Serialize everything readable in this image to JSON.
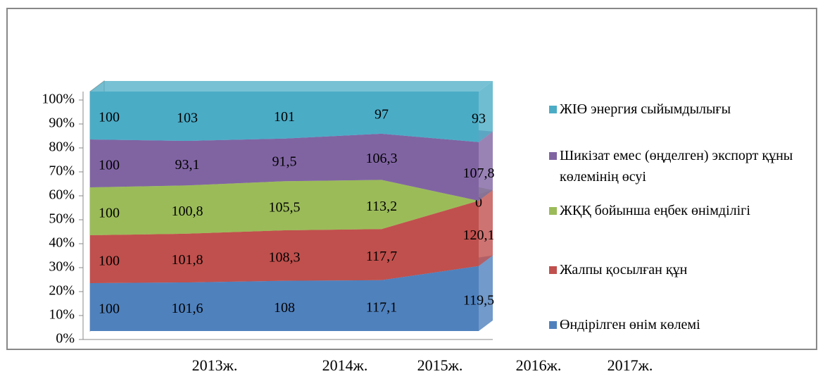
{
  "chart_data": {
    "type": "stacked_area_percent",
    "categories": [
      "2013ж.",
      "2014ж.",
      "2015ж.",
      "2016ж.",
      "2017ж."
    ],
    "series": [
      {
        "name": "Өндірілген өнім көлемі",
        "color": "#4f81bd",
        "values": [
          100,
          101.6,
          108,
          117.1,
          119.5
        ],
        "value_labels": [
          "100",
          "101,6",
          "108",
          "117,1",
          "119,5"
        ]
      },
      {
        "name": "Жалпы қосылған құн",
        "color": "#c0504d",
        "values": [
          100,
          101.8,
          108.3,
          117.7,
          120.1
        ],
        "value_labels": [
          "100",
          "101,8",
          "108,3",
          "117,7",
          "120,1"
        ]
      },
      {
        "name": "ЖҚҚ бойынша еңбек өнімділігі",
        "color": "#9bbb59",
        "values": [
          100,
          100.8,
          105.5,
          113.2,
          0
        ],
        "value_labels": [
          "100",
          "100,8",
          "105,5",
          "113,2",
          "0"
        ]
      },
      {
        "name": "Шикізат емес (өңделген) экспорт құны көлемінің өсуі",
        "color": "#8064a2",
        "values": [
          100,
          93.1,
          91.5,
          106.3,
          107.8
        ],
        "value_labels": [
          "100",
          "93,1",
          "91,5",
          "106,3",
          "107,8"
        ]
      },
      {
        "name": "ЖІӨ энергия сыйымдылығы",
        "color": "#4bacc6",
        "values": [
          100,
          103,
          101,
          97,
          93
        ],
        "value_labels": [
          "100",
          "103",
          "101",
          "97",
          "93"
        ]
      }
    ],
    "ylim": [
      0,
      100
    ],
    "yticks": [
      {
        "value": 0,
        "label": "0%"
      },
      {
        "value": 10,
        "label": "10%"
      },
      {
        "value": 20,
        "label": "20%"
      },
      {
        "value": 30,
        "label": "30%"
      },
      {
        "value": 40,
        "label": "40%"
      },
      {
        "value": 50,
        "label": "50%"
      },
      {
        "value": 60,
        "label": "60%"
      },
      {
        "value": 70,
        "label": "70%"
      },
      {
        "value": 80,
        "label": "80%"
      },
      {
        "value": 90,
        "label": "90%"
      },
      {
        "value": 100,
        "label": "100%"
      }
    ]
  }
}
